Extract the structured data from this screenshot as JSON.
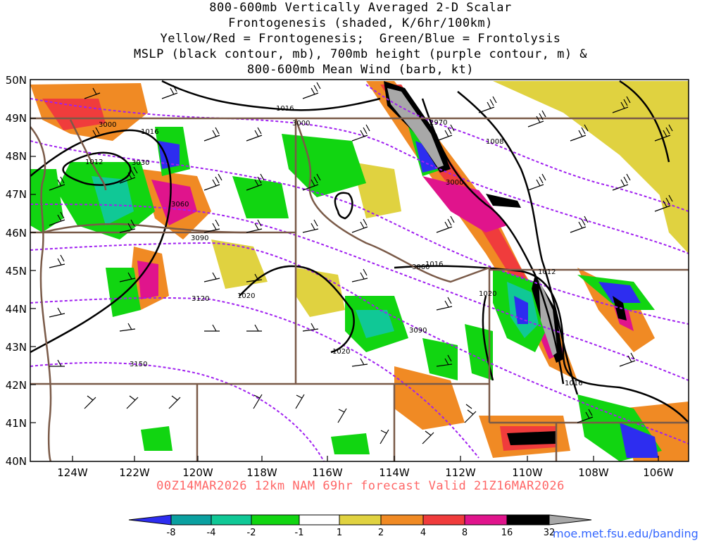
{
  "title": {
    "line1": "800-600mb Vertically Averaged 2-D Scalar",
    "line2": "Frontogenesis (shaded, K/6hr/100km)",
    "line3": "Yellow/Red = Frontogenesis;  Green/Blue = Frontolysis",
    "line4": "MSLP (black contour, mb), 700mb height (purple contour, m) &",
    "line5": "800-600mb Mean Wind (barb, kt)"
  },
  "footer": "00Z14MAR2026 12km NAM 69hr forecast Valid 21Z16MAR2026",
  "credit": "moe.met.fsu.edu/banding",
  "map": {
    "lat_labels": [
      "50N",
      "49N",
      "48N",
      "47N",
      "46N",
      "45N",
      "44N",
      "43N",
      "42N",
      "41N",
      "40N"
    ],
    "lon_labels": [
      "124W",
      "122W",
      "120W",
      "118W",
      "116W",
      "114W",
      "112W",
      "110W",
      "108W",
      "106W"
    ],
    "mslp_labels": [
      "1016",
      "1016",
      "1012",
      "1008",
      "1012",
      "1016",
      "1020",
      "1020",
      "1020",
      "1016"
    ],
    "height_labels": [
      "3000",
      "3000",
      "3030",
      "2970",
      "3000",
      "3060",
      "3060",
      "3090",
      "3120",
      "3090",
      "3150"
    ],
    "colors": {
      "state_border": "#7a5a48",
      "mslp": "#000000",
      "height": "#a020f0",
      "barb": "#000000"
    }
  },
  "colorbar": {
    "labels": [
      "-8",
      "-4",
      "-2",
      "-1",
      "1",
      "2",
      "4",
      "8",
      "16",
      "32"
    ],
    "colors": [
      "#2d2df0",
      "#0aa0a0",
      "#10c896",
      "#11d511",
      "#ffffff",
      "#e0d240",
      "#f08a24",
      "#f03c3c",
      "#e0148c",
      "#000000",
      "#a8a8a8"
    ]
  }
}
